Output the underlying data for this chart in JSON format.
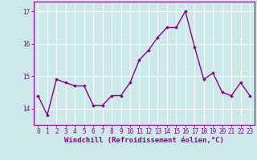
{
  "x": [
    0,
    1,
    2,
    3,
    4,
    5,
    6,
    7,
    8,
    9,
    10,
    11,
    12,
    13,
    14,
    15,
    16,
    17,
    18,
    19,
    20,
    21,
    22,
    23
  ],
  "y": [
    14.4,
    13.8,
    14.9,
    14.8,
    14.7,
    14.7,
    14.1,
    14.1,
    14.4,
    14.4,
    14.8,
    15.5,
    15.8,
    16.2,
    16.5,
    16.5,
    17.0,
    15.9,
    14.9,
    15.1,
    14.5,
    14.4,
    14.8,
    14.4
  ],
  "line_color": "#8b008b",
  "marker": "D",
  "marker_size": 1.8,
  "line_width": 1.0,
  "bg_color": "#cce8e8",
  "grid_color": "#ffffff",
  "xlabel": "Windchill (Refroidissement éolien,°C)",
  "xlabel_fontsize": 6.5,
  "ylabel_ticks": [
    14,
    15,
    16,
    17
  ],
  "xtick_labels": [
    "0",
    "1",
    "2",
    "3",
    "4",
    "5",
    "6",
    "7",
    "8",
    "9",
    "10",
    "11",
    "12",
    "13",
    "14",
    "15",
    "16",
    "17",
    "18",
    "19",
    "20",
    "21",
    "22",
    "23"
  ],
  "ylim": [
    13.5,
    17.3
  ],
  "xlim": [
    -0.5,
    23.5
  ],
  "tick_fontsize": 5.5,
  "tick_color": "#8b008b",
  "axis_color": "#8b008b",
  "spine_color": "#8b008b"
}
